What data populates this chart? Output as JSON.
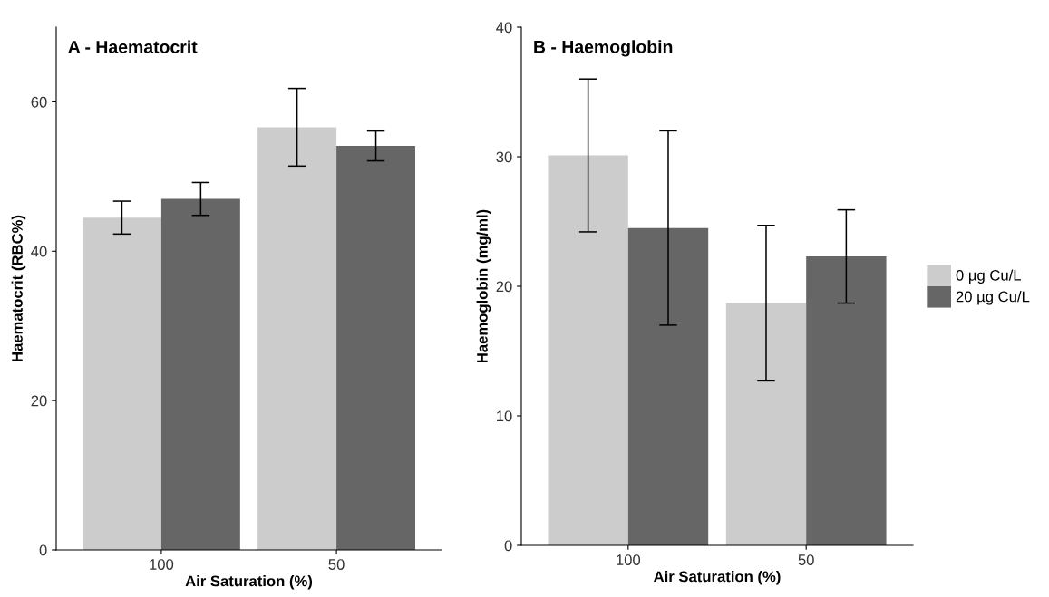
{
  "chart_data": [
    {
      "type": "bar",
      "title": "A - Haematocrit",
      "xlabel": "Air Saturation (%)",
      "ylabel": "Haematocrit (RBC%)",
      "categories": [
        "100",
        "50"
      ],
      "series": [
        {
          "color": "#cccccc",
          "values": [
            44.5,
            56.6
          ],
          "errors": [
            2.2,
            5.2
          ]
        },
        {
          "color": "#666666",
          "values": [
            47.0,
            54.1
          ],
          "errors": [
            2.2,
            2.0
          ]
        }
      ],
      "ylim": [
        0,
        70
      ],
      "yticks": [
        0,
        20,
        40,
        60
      ],
      "grid": false
    },
    {
      "type": "bar",
      "title": "B - Haemoglobin",
      "xlabel": "Air Saturation (%)",
      "ylabel": "Haemoglobin (mg/ml)",
      "categories": [
        "100",
        "50"
      ],
      "series": [
        {
          "name": "0 µg Cu/L",
          "color": "#cccccc",
          "values": [
            30.1,
            18.7
          ],
          "errors": [
            5.9,
            6.0
          ]
        },
        {
          "name": "20 µg Cu/L",
          "color": "#666666",
          "values": [
            24.5,
            22.3
          ],
          "errors": [
            7.5,
            3.6
          ]
        }
      ],
      "ylim": [
        0,
        40
      ],
      "yticks": [
        0,
        10,
        20,
        30,
        40
      ],
      "grid": false,
      "legend": "right"
    }
  ]
}
